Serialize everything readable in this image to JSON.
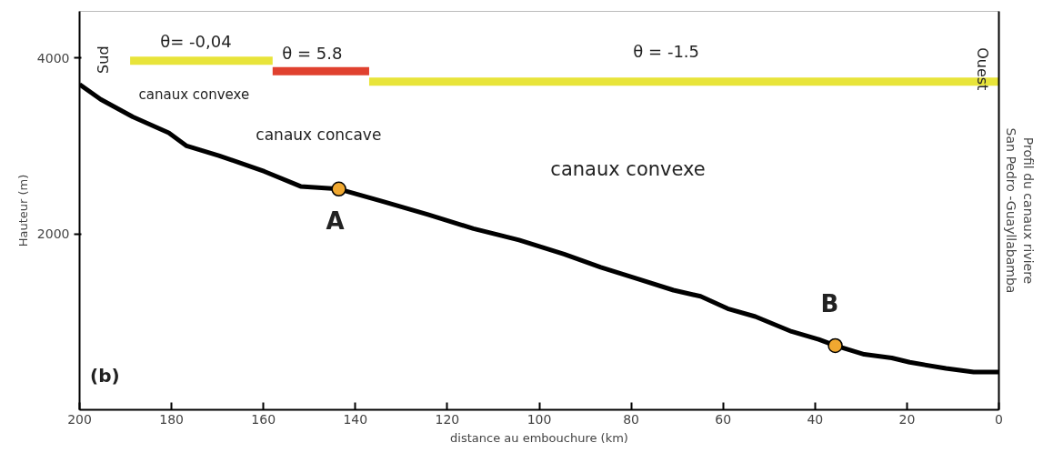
{
  "chart_data": {
    "type": "line",
    "xlabel": "distance au embouchure (km)",
    "ylabel": "Hauteur (m)",
    "y2label": "Profil du canaux riviere\nSan Pedro -Guayllabamba",
    "xlim": [
      200,
      0
    ],
    "xticks": [
      200,
      180,
      160,
      140,
      120,
      100,
      80,
      60,
      40,
      20,
      0
    ],
    "ylim": [
      0,
      4530
    ],
    "yticks": [
      2000,
      4000
    ],
    "grid": false,
    "line_style": "solid",
    "series": [
      {
        "color": "#000000",
        "x": [
          200,
          195.4,
          188.4,
          180.6,
          176.7,
          169.7,
          159.8,
          151.9,
          143.6,
          134.1,
          124.2,
          114.3,
          104.4,
          94.6,
          86.6,
          78.7,
          70.8,
          64.9,
          59.0,
          53.0,
          45.1,
          39.2,
          35.6,
          29.3,
          23.3,
          19.4,
          11.5,
          5.5,
          0
        ],
        "values": [
          3700,
          3530,
          3330,
          3150,
          3000,
          2890,
          2710,
          2540,
          2510,
          2370,
          2220,
          2060,
          1930,
          1770,
          1620,
          1490,
          1360,
          1290,
          1150,
          1060,
          890,
          800,
          730,
          630,
          590,
          540,
          470,
          430,
          430
        ]
      },
      {
        "color": "#e8e43a",
        "x": [
          189,
          158
        ],
        "values": [
          3970,
          3970
        ]
      },
      {
        "color": "#e0412f",
        "x": [
          158,
          137
        ],
        "values": [
          3850,
          3850
        ]
      },
      {
        "color": "#e8e43a",
        "x": [
          137,
          0
        ],
        "values": [
          3730,
          3730
        ]
      },
      {
        "type": "scatter",
        "marker": "circle",
        "color": "#f0a830",
        "x": [
          143.6,
          35.6
        ],
        "values": [
          2510,
          730
        ]
      }
    ],
    "annotations": [
      "θ= -0,04",
      "θ = 5.8",
      "θ  = -1.5",
      "canaux convexe",
      "canaux concave",
      "canaux convexe",
      "A",
      "B",
      "Sud",
      "Ouest",
      "(b)"
    ]
  }
}
